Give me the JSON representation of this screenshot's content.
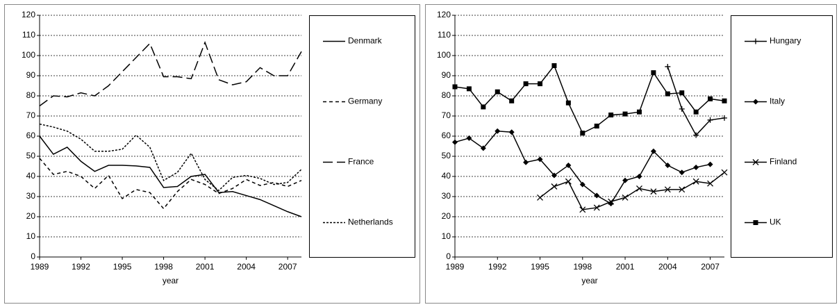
{
  "chart_data": [
    {
      "type": "line",
      "x_label": "year",
      "x": [
        1989,
        1990,
        1991,
        1992,
        1993,
        1994,
        1995,
        1996,
        1997,
        1998,
        1999,
        2000,
        2001,
        2002,
        2003,
        2004,
        2005,
        2006,
        2007,
        2008
      ],
      "xlim": [
        1989,
        2008
      ],
      "xticks": [
        1989,
        1992,
        1995,
        1998,
        2001,
        2004,
        2007
      ],
      "ylim": [
        0,
        120
      ],
      "yticks": [
        0,
        10,
        20,
        30,
        40,
        50,
        60,
        70,
        80,
        90,
        100,
        110,
        120
      ],
      "grid": true,
      "series": [
        {
          "name": "Denmark",
          "color": "#000000",
          "dash": "solid",
          "marker": "none",
          "values": [
            60,
            51,
            54.5,
            47.5,
            42.5,
            45.5,
            45.5,
            45.2,
            44.5,
            34.5,
            35,
            40,
            41,
            32,
            32.5,
            30.5,
            28.5,
            25.5,
            22.5,
            20
          ]
        },
        {
          "name": "Germany",
          "color": "#000000",
          "dash": "short",
          "marker": "none",
          "values": [
            49,
            41,
            42.5,
            40,
            34,
            40.5,
            29,
            33.5,
            32,
            24,
            32.5,
            38.5,
            36,
            31.5,
            34,
            38.5,
            35.5,
            37,
            35,
            38
          ]
        },
        {
          "name": "France",
          "color": "#000000",
          "dash": "long",
          "marker": "none",
          "values": [
            75,
            80,
            79.5,
            81.5,
            80,
            85,
            92,
            99,
            106,
            89.5,
            89.5,
            88.5,
            106.5,
            88,
            85.5,
            87,
            94,
            90,
            90,
            102
          ]
        },
        {
          "name": "Netherlands",
          "color": "#000000",
          "dash": "fine",
          "marker": "none",
          "values": [
            66,
            64.5,
            62.5,
            58.5,
            52.5,
            52.5,
            53.5,
            60.5,
            54.5,
            38,
            42,
            51.5,
            38.5,
            33,
            39.5,
            40.5,
            39,
            36,
            37,
            43.5
          ]
        }
      ]
    },
    {
      "type": "line",
      "x_label": "year",
      "x": [
        1989,
        1990,
        1991,
        1992,
        1993,
        1994,
        1995,
        1996,
        1997,
        1998,
        1999,
        2000,
        2001,
        2002,
        2003,
        2004,
        2005,
        2006,
        2007,
        2008
      ],
      "xlim": [
        1989,
        2008
      ],
      "xticks": [
        1989,
        1992,
        1995,
        1998,
        2001,
        2004,
        2007
      ],
      "ylim": [
        0,
        120
      ],
      "yticks": [
        0,
        10,
        20,
        30,
        40,
        50,
        60,
        70,
        80,
        90,
        100,
        110,
        120
      ],
      "grid": true,
      "series": [
        {
          "name": "Hungary",
          "color": "#000000",
          "dash": "solid",
          "marker": "plus",
          "values": [
            null,
            null,
            null,
            null,
            null,
            null,
            null,
            null,
            null,
            null,
            null,
            null,
            null,
            null,
            null,
            94.5,
            73.5,
            60.5,
            68,
            69
          ]
        },
        {
          "name": "Italy",
          "color": "#000000",
          "dash": "solid",
          "marker": "diamond",
          "values": [
            57,
            59,
            54,
            62.5,
            62,
            47,
            48.5,
            40.5,
            45.5,
            36,
            30.5,
            26.5,
            38,
            40,
            52.5,
            45.5,
            42,
            44.5,
            46,
            null
          ]
        },
        {
          "name": "Finland",
          "color": "#000000",
          "dash": "solid",
          "marker": "cross",
          "values": [
            null,
            null,
            null,
            null,
            null,
            null,
            29.5,
            35,
            37.5,
            23.5,
            24.5,
            27.5,
            29.5,
            34,
            32.5,
            33.5,
            33.5,
            37.5,
            36.5,
            42
          ]
        },
        {
          "name": "UK",
          "color": "#000000",
          "dash": "solid",
          "marker": "square",
          "values": [
            84.5,
            83.5,
            74.5,
            82,
            77.5,
            86,
            86,
            95,
            76.5,
            61.5,
            65,
            70.5,
            71,
            72,
            91.5,
            81,
            81.5,
            72,
            78.5,
            77.5
          ]
        }
      ]
    }
  ]
}
